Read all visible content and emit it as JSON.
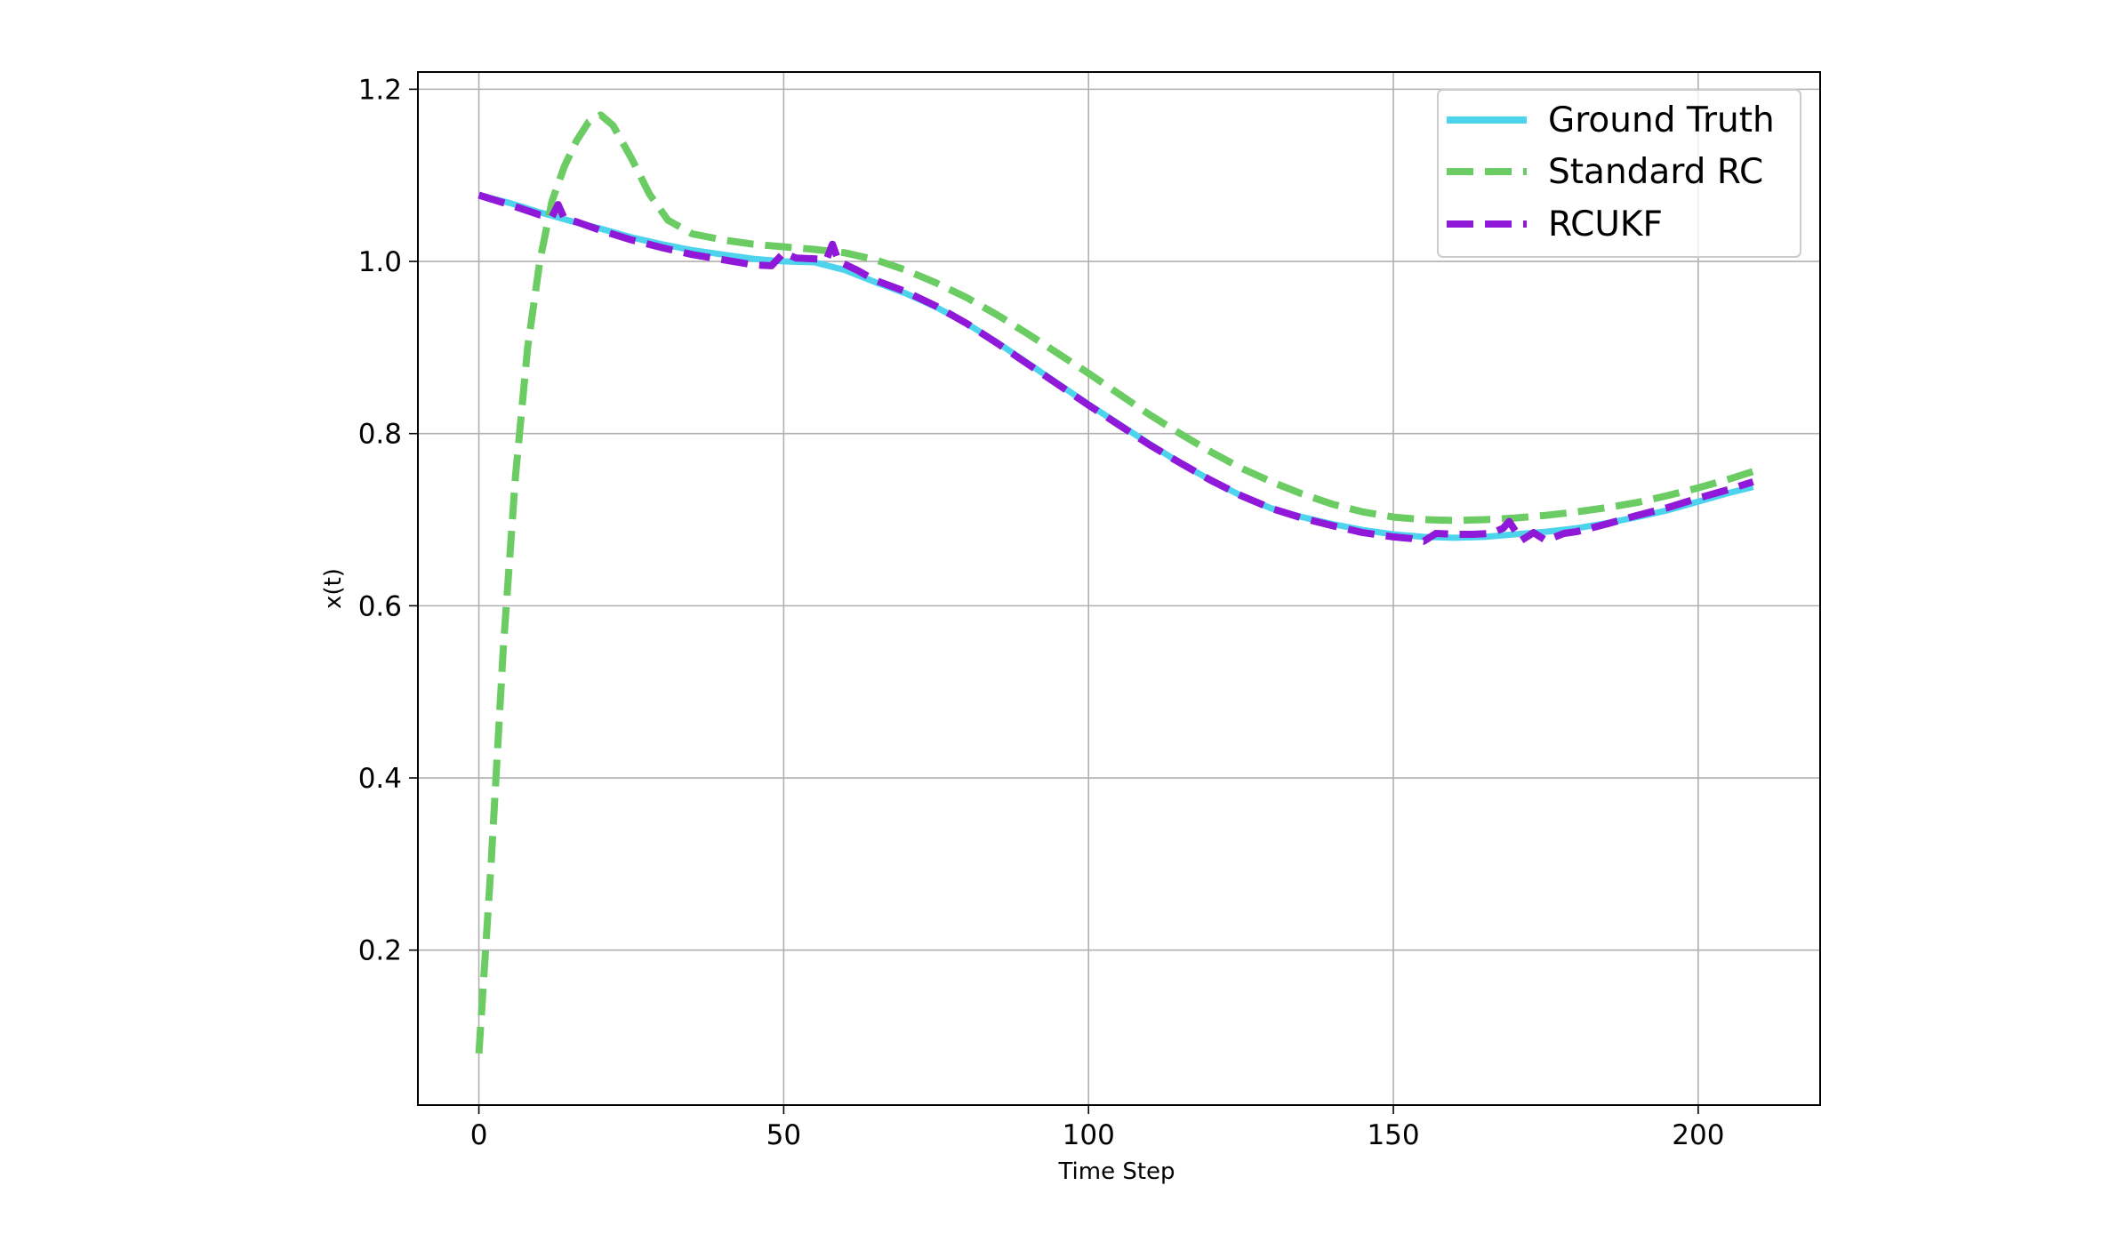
{
  "chart_data": {
    "type": "line",
    "title": "",
    "xlabel": "Time Step",
    "ylabel": "x(t)",
    "xlim": [
      -10,
      220
    ],
    "ylim": [
      0.02,
      1.22
    ],
    "xticks": [
      0,
      50,
      100,
      150,
      200
    ],
    "yticks": [
      0.2,
      0.4,
      0.6,
      0.8,
      1.0,
      1.2
    ],
    "xtick_labels": [
      "0",
      "50",
      "100",
      "150",
      "200"
    ],
    "ytick_labels": [
      "0.2",
      "0.4",
      "0.6",
      "0.8",
      "1.0",
      "1.2"
    ],
    "grid": true,
    "legend_position": "top-right",
    "series": [
      {
        "name": "Ground Truth",
        "color": "#4dd4ec",
        "style": "solid",
        "x": [
          0,
          5,
          10,
          15,
          20,
          25,
          30,
          35,
          40,
          45,
          50,
          55,
          60,
          65,
          70,
          75,
          80,
          85,
          90,
          95,
          100,
          105,
          110,
          115,
          120,
          125,
          130,
          135,
          140,
          145,
          150,
          155,
          160,
          165,
          170,
          175,
          180,
          185,
          190,
          195,
          200,
          205,
          209
        ],
        "y": [
          1.077,
          1.068,
          1.057,
          1.047,
          1.038,
          1.028,
          1.02,
          1.013,
          1.008,
          1.003,
          1.0,
          0.999,
          0.99,
          0.976,
          0.963,
          0.947,
          0.928,
          0.906,
          0.882,
          0.858,
          0.834,
          0.811,
          0.788,
          0.766,
          0.746,
          0.728,
          0.713,
          0.703,
          0.695,
          0.688,
          0.683,
          0.68,
          0.679,
          0.68,
          0.683,
          0.686,
          0.69,
          0.696,
          0.703,
          0.711,
          0.721,
          0.731,
          0.738
        ]
      },
      {
        "name": "Standard RC",
        "color": "#6ccc64",
        "style": "dashed",
        "x": [
          0,
          2,
          4,
          6,
          8,
          10,
          12,
          14,
          16,
          18,
          20,
          22,
          25,
          28,
          31,
          35,
          40,
          45,
          50,
          55,
          60,
          65,
          70,
          75,
          80,
          85,
          90,
          95,
          100,
          105,
          110,
          115,
          120,
          125,
          130,
          135,
          140,
          145,
          150,
          155,
          160,
          165,
          170,
          175,
          180,
          185,
          190,
          195,
          200,
          205,
          209
        ],
        "y": [
          0.08,
          0.3,
          0.55,
          0.75,
          0.9,
          1.0,
          1.07,
          1.11,
          1.14,
          1.162,
          1.17,
          1.158,
          1.12,
          1.078,
          1.048,
          1.032,
          1.025,
          1.02,
          1.017,
          1.014,
          1.01,
          1.002,
          0.99,
          0.975,
          0.958,
          0.938,
          0.916,
          0.893,
          0.87,
          0.846,
          0.822,
          0.8,
          0.779,
          0.76,
          0.744,
          0.73,
          0.718,
          0.709,
          0.703,
          0.7,
          0.699,
          0.7,
          0.702,
          0.705,
          0.709,
          0.714,
          0.72,
          0.728,
          0.737,
          0.747,
          0.756
        ]
      },
      {
        "name": "RCUKF",
        "color": "#9018d8",
        "style": "dashed",
        "x": [
          0,
          5,
          10,
          12,
          13,
          14,
          16,
          20,
          25,
          30,
          35,
          40,
          45,
          48,
          50,
          52,
          55,
          57,
          58,
          59,
          62,
          65,
          70,
          75,
          80,
          85,
          90,
          95,
          100,
          105,
          110,
          115,
          120,
          125,
          130,
          135,
          140,
          145,
          150,
          153,
          155,
          157,
          160,
          163,
          166,
          168,
          169,
          171,
          173,
          175,
          178,
          180,
          185,
          190,
          195,
          200,
          205,
          209
        ],
        "y": [
          1.077,
          1.066,
          1.054,
          1.052,
          1.066,
          1.05,
          1.046,
          1.036,
          1.025,
          1.016,
          1.008,
          1.002,
          0.996,
          0.995,
          1.01,
          1.004,
          1.003,
          1.002,
          1.02,
          1.0,
          0.99,
          0.978,
          0.965,
          0.948,
          0.928,
          0.905,
          0.881,
          0.857,
          0.833,
          0.81,
          0.787,
          0.766,
          0.746,
          0.728,
          0.713,
          0.702,
          0.693,
          0.685,
          0.68,
          0.678,
          0.675,
          0.684,
          0.683,
          0.683,
          0.684,
          0.69,
          0.698,
          0.676,
          0.685,
          0.676,
          0.684,
          0.686,
          0.695,
          0.705,
          0.714,
          0.725,
          0.735,
          0.744
        ]
      }
    ]
  }
}
